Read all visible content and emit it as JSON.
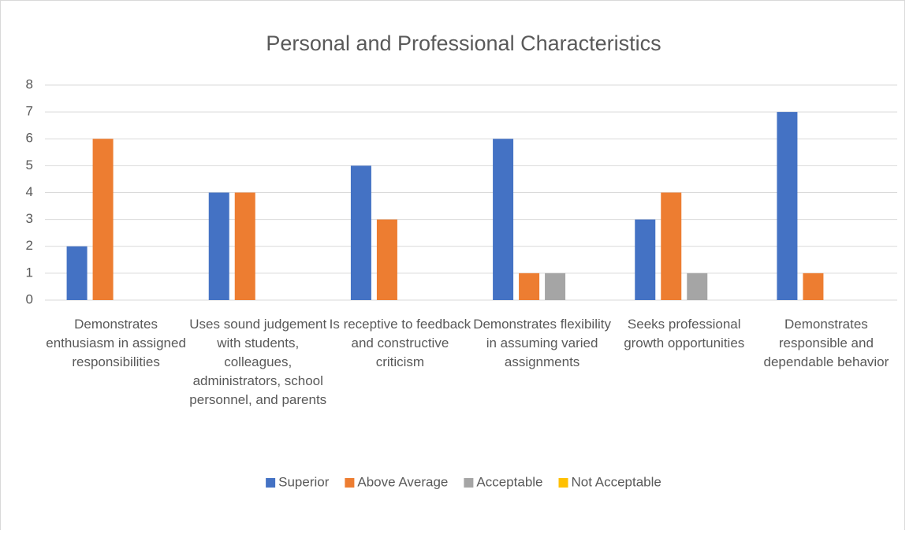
{
  "chart_data": {
    "type": "bar",
    "title": "Personal and Professional Characteristics",
    "categories": [
      "Demonstrates enthusiasm in assigned responsibilities",
      "Uses sound judgement with students, colleagues, administrators, school personnel, and parents",
      "Is receptive to feedback and constructive criticism",
      "Demonstrates flexibility in assuming varied assignments",
      "Seeks professional growth opportunities",
      "Demonstrates responsible and dependable behavior"
    ],
    "series": [
      {
        "name": "Superior",
        "color": "#4472c4",
        "values": [
          2,
          4,
          5,
          6,
          3,
          7
        ]
      },
      {
        "name": "Above Average",
        "color": "#ed7d31",
        "values": [
          6,
          4,
          3,
          1,
          4,
          1
        ]
      },
      {
        "name": "Acceptable",
        "color": "#a5a5a5",
        "values": [
          0,
          0,
          0,
          1,
          1,
          0
        ]
      },
      {
        "name": "Not Acceptable",
        "color": "#ffc000",
        "values": [
          0,
          0,
          0,
          0,
          0,
          0
        ]
      }
    ],
    "ylim": [
      0,
      8
    ],
    "yticks": [
      0,
      1,
      2,
      3,
      4,
      5,
      6,
      7,
      8
    ],
    "grid": true,
    "legend": "bottom"
  }
}
